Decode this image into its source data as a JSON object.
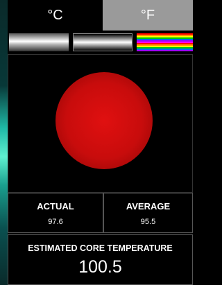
{
  "tabs": [
    "°C",
    "°F"
  ],
  "readings": {
    "actual": {
      "label": "ACTUAL",
      "value": 97.6
    },
    "average": {
      "label": "AVERAGE",
      "value": 95.5
    },
    "core": {
      "label": "ESTIMATED CORE TEMPERATURE",
      "value": 100.5
    }
  }
}
